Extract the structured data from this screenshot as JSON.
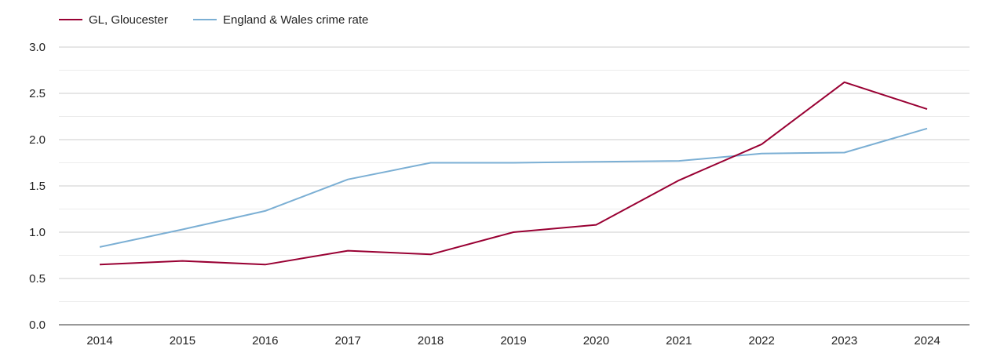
{
  "chart_data": {
    "type": "line",
    "title": "",
    "xlabel": "",
    "ylabel": "",
    "categories": [
      "2014",
      "2015",
      "2016",
      "2017",
      "2018",
      "2019",
      "2020",
      "2021",
      "2022",
      "2023",
      "2024"
    ],
    "y_ticks": [
      "0.0",
      "0.5",
      "1.0",
      "1.5",
      "2.0",
      "2.5",
      "3.0"
    ],
    "ylim": [
      0,
      3.0
    ],
    "grid": true,
    "legend_position": "top-left",
    "series": [
      {
        "name": "GL, Gloucester",
        "color": "#990033",
        "values": [
          0.65,
          0.69,
          0.65,
          0.8,
          0.76,
          1.0,
          1.08,
          1.56,
          1.95,
          2.62,
          2.33
        ]
      },
      {
        "name": "England & Wales crime rate",
        "color": "#7bafd4",
        "values": [
          0.84,
          1.03,
          1.23,
          1.57,
          1.75,
          1.75,
          1.76,
          1.77,
          1.85,
          1.86,
          2.12
        ]
      }
    ]
  }
}
